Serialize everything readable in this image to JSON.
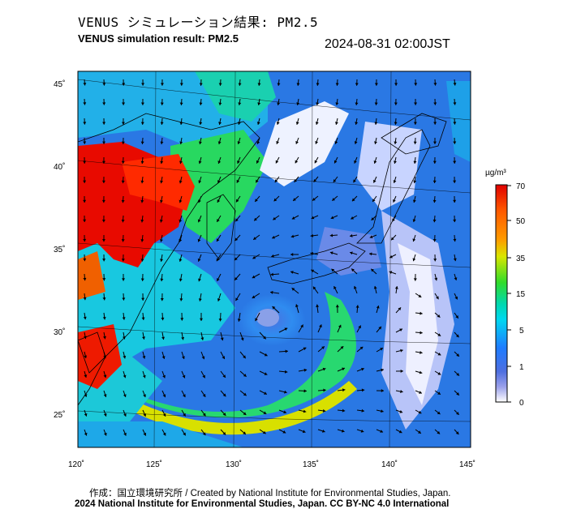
{
  "header": {
    "title_jp": "VENUS シミュレーション結果: PM2.5",
    "title_en": "VENUS simulation result: PM2.5",
    "timestamp": "2024-08-31 02:00JST"
  },
  "map": {
    "lon_labels": [
      "120˚",
      "125˚",
      "130˚",
      "135˚",
      "140˚",
      "145˚"
    ],
    "lat_labels": [
      "45˚",
      "40˚",
      "35˚",
      "30˚",
      "25˚"
    ],
    "colors": {
      "sea_background": "#2a73e0",
      "land_outline": "#000000"
    }
  },
  "colorbar": {
    "unit": "µg/m³",
    "tick_labels": [
      "70",
      "50",
      "35",
      "15",
      "5",
      "1",
      "0"
    ],
    "colors": [
      "#ff0000",
      "#ff7a00",
      "#d6e600",
      "#2ee02a",
      "#00e6e6",
      "#1e7aff",
      "#6a72d8",
      "#ffffff"
    ]
  },
  "footer": {
    "credit_jp_en": "作成：国立環境研究所 / Created by National Institute for Environmental Studies, Japan.",
    "copyright": "2024 National Institute for Environmental Studies, Japan. CC BY-NC 4.0 International"
  }
}
